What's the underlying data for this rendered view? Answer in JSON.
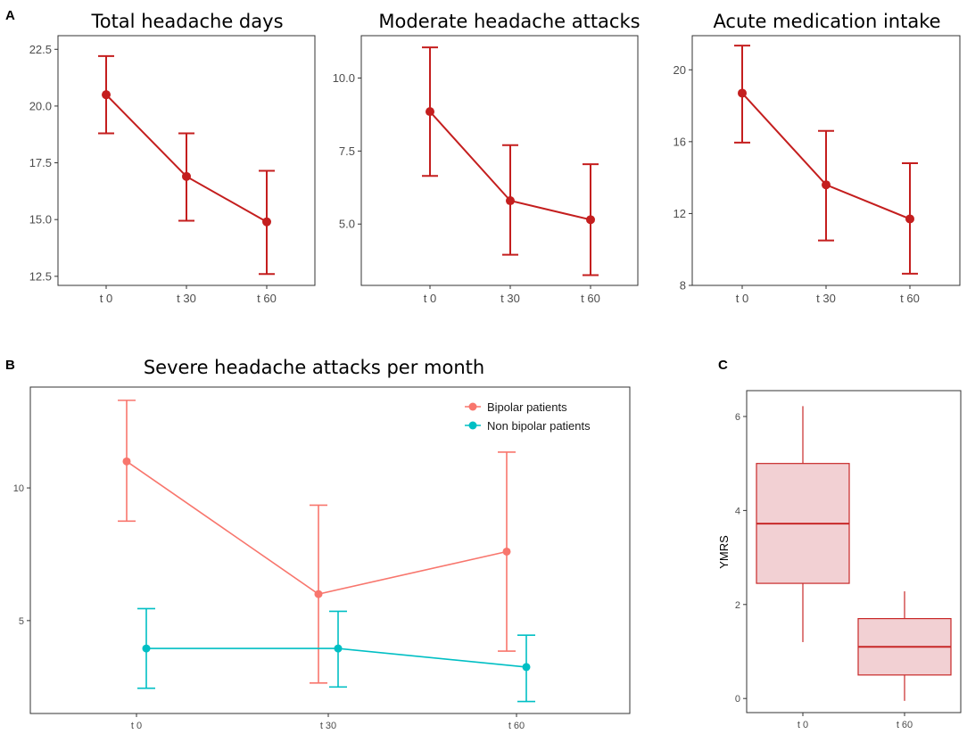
{
  "colors": {
    "panel_a": "#c41e1e",
    "bipolar": "#f8766d",
    "non_bipolar": "#00bfc4",
    "box_stroke": "#c82828",
    "box_fill": "#f2d0d3"
  },
  "panel_letters": {
    "a": "A",
    "b": "B",
    "c": "C"
  },
  "chart_data": [
    {
      "id": "total",
      "type": "line",
      "title": "Total headache days",
      "categories": [
        "t 0",
        "t 30",
        "t 60"
      ],
      "values": [
        20.5,
        16.9,
        14.9
      ],
      "lower": [
        18.8,
        14.95,
        12.6
      ],
      "upper": [
        22.2,
        18.8,
        17.15
      ],
      "ylim": [
        12.1,
        23.1
      ],
      "yticks": [
        12.5,
        15.0,
        17.5,
        20.0,
        22.5
      ],
      "ytick_labels": [
        "12.5",
        "15.0",
        "17.5",
        "20.0",
        "22.5"
      ]
    },
    {
      "id": "moderate",
      "type": "line",
      "title": "Moderate headache attacks",
      "categories": [
        "t 0",
        "t 30",
        "t 60"
      ],
      "values": [
        8.85,
        5.8,
        5.15
      ],
      "lower": [
        6.65,
        3.95,
        3.25
      ],
      "upper": [
        11.05,
        7.7,
        7.05
      ],
      "ylim": [
        2.9,
        11.45
      ],
      "yticks": [
        5.0,
        7.5,
        10.0
      ],
      "ytick_labels": [
        "5.0",
        "7.5",
        "10.0"
      ]
    },
    {
      "id": "acute",
      "type": "line",
      "title": "Acute medication intake",
      "categories": [
        "t 0",
        "t 30",
        "t 60"
      ],
      "values": [
        18.7,
        13.6,
        11.7
      ],
      "lower": [
        15.95,
        10.5,
        8.65
      ],
      "upper": [
        21.35,
        16.6,
        14.8
      ],
      "ylim": [
        8.0,
        21.9
      ],
      "yticks": [
        8,
        12,
        16,
        20
      ],
      "ytick_labels": [
        "8",
        "12",
        "16",
        "20"
      ]
    },
    {
      "id": "severe",
      "type": "line",
      "title": "Severe headache attacks per month",
      "categories": [
        "t 0",
        "t 30",
        "t 60"
      ],
      "ylim": [
        1.5,
        13.8
      ],
      "yticks": [
        5,
        10
      ],
      "ytick_labels": [
        "5",
        "10"
      ],
      "legend_position": "top-right",
      "series": [
        {
          "name": "Bipolar patients",
          "color_key": "bipolar",
          "values": [
            11.0,
            6.0,
            7.6
          ],
          "lower": [
            8.75,
            2.65,
            3.85
          ],
          "upper": [
            13.3,
            9.35,
            11.35
          ]
        },
        {
          "name": "Non bipolar patients",
          "color_key": "non_bipolar",
          "values": [
            3.95,
            3.95,
            3.25
          ],
          "lower": [
            2.45,
            2.5,
            1.95
          ],
          "upper": [
            5.45,
            5.35,
            4.45
          ]
        }
      ]
    },
    {
      "id": "ymrs",
      "type": "box",
      "ylabel": "YMRS",
      "categories": [
        "t 0",
        "t 60"
      ],
      "ylim": [
        -0.3,
        6.55
      ],
      "yticks": [
        0,
        2,
        4,
        6
      ],
      "ytick_labels": [
        "0",
        "2",
        "4",
        "6"
      ],
      "boxes": [
        {
          "min": 1.2,
          "q1": 2.45,
          "median": 3.72,
          "q3": 5.0,
          "max": 6.22
        },
        {
          "min": -0.05,
          "q1": 0.5,
          "median": 1.1,
          "q3": 1.7,
          "max": 2.28
        }
      ]
    }
  ]
}
